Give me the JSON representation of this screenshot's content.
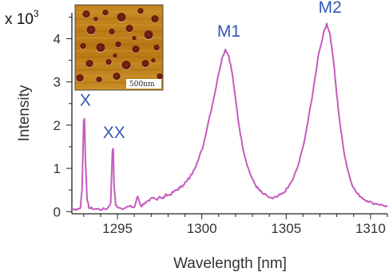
{
  "chart_data": {
    "type": "line",
    "title": "",
    "xlabel": "Wavelength [nm]",
    "ylabel": "Intensity",
    "y_multiplier": {
      "base": "x 10",
      "exponent": "3"
    },
    "xlim": [
      1292.3,
      1311.0
    ],
    "ylim": [
      -0.05,
      4.6
    ],
    "x_ticks": [
      {
        "value": 1295,
        "label": "1295"
      },
      {
        "value": 1300,
        "label": "1300"
      },
      {
        "value": 1305,
        "label": "1305"
      },
      {
        "value": 1310,
        "label": "1310"
      }
    ],
    "y_ticks": [
      {
        "value": 0,
        "label": "0"
      },
      {
        "value": 1,
        "label": "1"
      },
      {
        "value": 2,
        "label": "2"
      },
      {
        "value": 3,
        "label": "3"
      },
      {
        "value": 4,
        "label": "4"
      }
    ],
    "grid": false,
    "series": [
      {
        "color": "#c45bbd",
        "x": [
          1292.3,
          1292.6,
          1292.8,
          1292.9,
          1293.0,
          1293.05,
          1293.1,
          1293.2,
          1293.3,
          1293.5,
          1293.8,
          1294.1,
          1294.4,
          1294.6,
          1294.7,
          1294.75,
          1294.8,
          1294.9,
          1295.1,
          1295.4,
          1295.7,
          1296.0,
          1296.2,
          1296.4,
          1296.6,
          1296.9,
          1297.1,
          1297.3,
          1297.5,
          1297.7,
          1297.9,
          1298.1,
          1298.3,
          1298.5,
          1298.7,
          1298.9,
          1299.1,
          1299.3,
          1299.5,
          1299.8,
          1300.1,
          1300.4,
          1300.7,
          1301.0,
          1301.2,
          1301.4,
          1301.6,
          1301.8,
          1302.0,
          1302.2,
          1302.4,
          1302.6,
          1302.8,
          1303.0,
          1303.2,
          1303.4,
          1303.6,
          1303.9,
          1304.2,
          1304.5,
          1304.8,
          1305.1,
          1305.4,
          1305.7,
          1306.0,
          1306.3,
          1306.6,
          1306.9,
          1307.2,
          1307.4,
          1307.6,
          1307.8,
          1308.0,
          1308.2,
          1308.4,
          1308.6,
          1308.8,
          1309.0,
          1309.2,
          1309.5,
          1309.8,
          1310.1,
          1310.4,
          1310.7,
          1311.0
        ],
        "y": [
          0.05,
          0.06,
          0.08,
          0.5,
          2.1,
          2.15,
          1.2,
          0.3,
          0.1,
          0.07,
          0.06,
          0.05,
          0.07,
          0.2,
          1.4,
          1.45,
          0.6,
          0.15,
          0.09,
          0.08,
          0.12,
          0.1,
          0.35,
          0.12,
          0.2,
          0.25,
          0.32,
          0.28,
          0.35,
          0.3,
          0.4,
          0.38,
          0.45,
          0.5,
          0.55,
          0.62,
          0.7,
          0.8,
          0.95,
          1.2,
          1.55,
          2.1,
          2.6,
          3.2,
          3.55,
          3.75,
          3.6,
          3.2,
          2.6,
          2.0,
          1.55,
          1.2,
          0.95,
          0.75,
          0.6,
          0.5,
          0.42,
          0.35,
          0.3,
          0.35,
          0.42,
          0.55,
          0.75,
          1.05,
          1.5,
          2.1,
          2.8,
          3.6,
          4.1,
          4.35,
          4.1,
          3.5,
          2.7,
          2.0,
          1.45,
          1.05,
          0.75,
          0.55,
          0.42,
          0.32,
          0.25,
          0.2,
          0.18,
          0.15,
          0.12
        ]
      }
    ],
    "annotations": [
      {
        "text": "X",
        "x": 1293.1,
        "y": 2.45,
        "color": "#3558b8"
      },
      {
        "text": "XX",
        "x": 1294.8,
        "y": 1.7,
        "color": "#3558b8"
      },
      {
        "text": "M1",
        "x": 1301.6,
        "y": 4.05,
        "color": "#3558b8"
      },
      {
        "text": "M2",
        "x": 1307.6,
        "y": 4.6,
        "color": "#3558b8"
      }
    ],
    "inset": {
      "description_colors": {
        "background": "#c0841c",
        "dots": "#7a1e10",
        "rim": "#f2e2b0"
      },
      "scale_bar_label": "500nm"
    }
  }
}
